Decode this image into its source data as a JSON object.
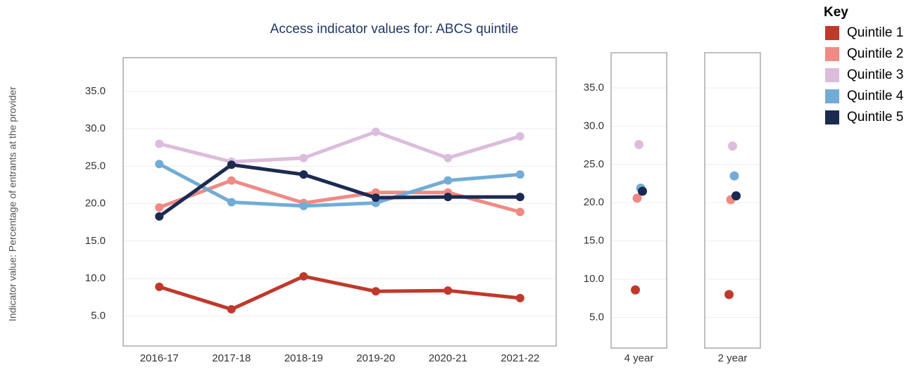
{
  "chart_data": {
    "type": "line",
    "title": "Access indicator values for: ABCS quintile",
    "y_label": "Indicator value: Percentage of  entrants at the provider",
    "legend_title": "Key",
    "categories": [
      "2016-17",
      "2017-18",
      "2018-19",
      "2019-20",
      "2020-21",
      "2021-22"
    ],
    "panel_categories": [
      "4 year",
      "2 year"
    ],
    "series": [
      {
        "name": "Quintile 1",
        "color": "#c0392b",
        "values": [
          8.9,
          5.9,
          10.3,
          8.3,
          8.4,
          7.4
        ],
        "panel_values": [
          8.6,
          8.0
        ]
      },
      {
        "name": "Quintile 2",
        "color": "#f08a84",
        "values": [
          19.5,
          23.1,
          20.1,
          21.5,
          21.5,
          18.9
        ],
        "panel_values": [
          20.6,
          20.4
        ]
      },
      {
        "name": "Quintile 3",
        "color": "#dcbcdc",
        "values": [
          28.0,
          25.6,
          26.1,
          29.6,
          26.1,
          29.0
        ],
        "panel_values": [
          27.6,
          27.4
        ]
      },
      {
        "name": "Quintile 4",
        "color": "#72acd6",
        "values": [
          25.3,
          20.2,
          19.7,
          20.1,
          23.1,
          23.9
        ],
        "panel_values": [
          21.9,
          23.5
        ]
      },
      {
        "name": "Quintile 5",
        "color": "#1b2a52",
        "values": [
          18.3,
          25.2,
          23.9,
          20.8,
          20.9,
          20.9
        ],
        "panel_values": [
          21.5,
          20.9
        ]
      }
    ],
    "ylim": [
      1,
      39.5
    ],
    "yticks": [
      {
        "value": 5,
        "label": "5.0"
      },
      {
        "value": 10,
        "label": "10.0"
      },
      {
        "value": 15,
        "label": "15.0"
      },
      {
        "value": 20,
        "label": "20.0"
      },
      {
        "value": 25,
        "label": "25.0"
      },
      {
        "value": 30,
        "label": "30.0"
      },
      {
        "value": 35,
        "label": "35.0"
      }
    ],
    "panel_ylim": [
      1,
      39.6
    ],
    "panel_yticks": [
      {
        "value": 5,
        "label": "5.0"
      },
      {
        "value": 10,
        "label": "10.0"
      },
      {
        "value": 15,
        "label": "15.0"
      },
      {
        "value": 20,
        "label": "20.0"
      },
      {
        "value": 25,
        "label": "25.0"
      },
      {
        "value": 30,
        "label": "30.0"
      },
      {
        "value": 35,
        "label": "35.0"
      }
    ],
    "grid": true
  }
}
